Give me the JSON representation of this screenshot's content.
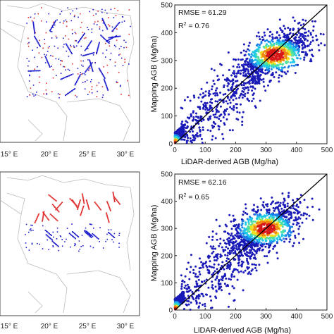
{
  "chart_data": [
    {
      "type": "map",
      "panel": "top-left",
      "xticks": [
        "15° E",
        "20° E",
        "25° E",
        "30° E"
      ],
      "point_colors": {
        "red": "#e03030",
        "blue": "#1a1acc"
      }
    },
    {
      "type": "scatter",
      "panel": "top-right",
      "xlabel": "LiDAR-derived AGB (Mg/ha)",
      "ylabel": "Mapping AGB (Mg/ha)",
      "xlim": [
        0,
        500
      ],
      "ylim": [
        0,
        500
      ],
      "xticks": [
        "0",
        "100",
        "200",
        "300",
        "400",
        "500"
      ],
      "yticks": [
        "0",
        "100",
        "200",
        "300",
        "400",
        "500"
      ],
      "rmse_label": "RMSE = 61.29",
      "r2_prefix": "R",
      "r2_sup": "2",
      "r2_value": " = 0.76",
      "one_to_one_line": true,
      "density": "high near (330, 320)"
    },
    {
      "type": "map",
      "panel": "bottom-left",
      "xticks": [
        "15° E",
        "20° E",
        "25° E",
        "30° E"
      ],
      "point_colors": {
        "red": "#e03030",
        "blue": "#1a1acc"
      }
    },
    {
      "type": "scatter",
      "panel": "bottom-right",
      "xlabel": "LiDAR-derived AGB (Mg/ha)",
      "ylabel": "Mapping AGB (Mg/ha)",
      "xlim": [
        0,
        500
      ],
      "ylim": [
        0,
        500
      ],
      "xticks": [
        "0",
        "100",
        "200",
        "300",
        "400",
        "500"
      ],
      "yticks": [
        "0",
        "100",
        "200",
        "300",
        "400",
        "500"
      ],
      "rmse_label": "RMSE = 62.16",
      "r2_prefix": "R",
      "r2_sup": "2",
      "r2_value": " = 0.65",
      "one_to_one_line": true,
      "density": "high near (300, 300)"
    }
  ]
}
